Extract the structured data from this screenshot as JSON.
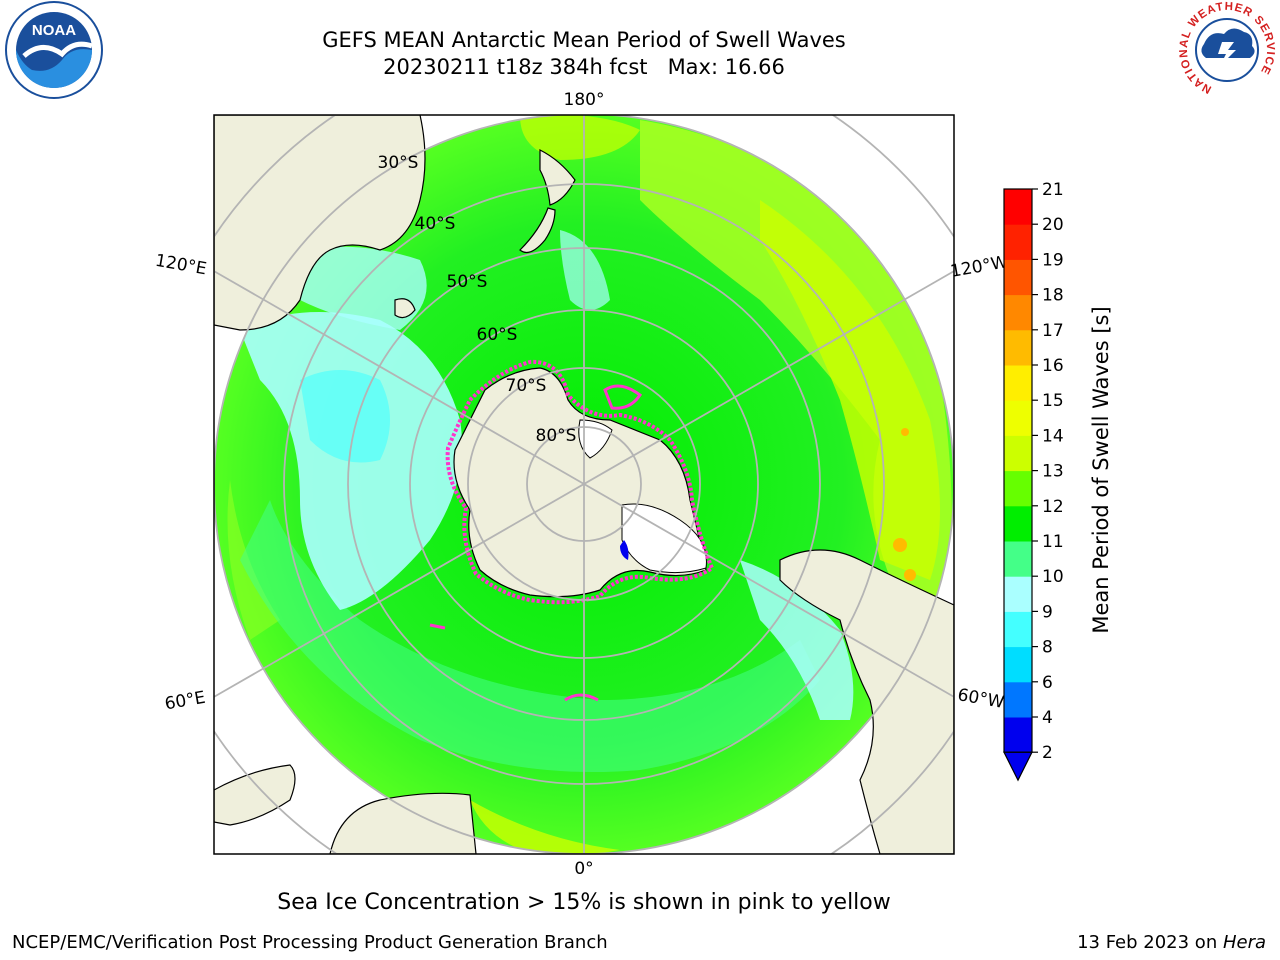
{
  "title": {
    "line1": "GEFS MEAN Antarctic Mean Period of Swell Waves",
    "line2": "20230211 t18z 384h fcst   Max: 16.66"
  },
  "map": {
    "projection": "south-polar-stereographic",
    "longitude_labels": {
      "top": "180°",
      "bottom": "0°",
      "upper_left": "120°E",
      "upper_right": "120°W",
      "lower_left": "60°E",
      "lower_right": "60°W"
    },
    "latitude_labels": [
      "30°S",
      "40°S",
      "50°S",
      "60°S",
      "70°S",
      "80°S"
    ],
    "colors": {
      "land": "#efefdc",
      "graticule": "#b4b4b4",
      "coast": "#000000",
      "sea_ice_edge": "#ff33cc"
    }
  },
  "colorbar": {
    "label": "Mean Period of Swell Waves [s]",
    "ticks": [
      "2",
      "4",
      "6",
      "8",
      "9",
      "10",
      "11",
      "12",
      "13",
      "14",
      "15",
      "16",
      "17",
      "18",
      "19",
      "20",
      "21"
    ],
    "colors": [
      "#0000ee",
      "#0077ff",
      "#00ddff",
      "#44ffff",
      "#aaffff",
      "#44ff88",
      "#00ee00",
      "#66ff00",
      "#ccff00",
      "#eeff00",
      "#ffee00",
      "#ffbb00",
      "#ff8800",
      "#ff5500",
      "#ff2200",
      "#ff0000"
    ],
    "extend": "min"
  },
  "logos": {
    "noaa": "NOAA",
    "nws_ring": "NATIONAL WEATHER SERVICE"
  },
  "footer": {
    "ice_note": "Sea Ice Concentration > 15% is shown in pink to yellow",
    "credit": "NCEP/EMC/Verification Post Processing Product Generation Branch",
    "date_prefix": "13 Feb 2023 on ",
    "machine": "Hera"
  }
}
